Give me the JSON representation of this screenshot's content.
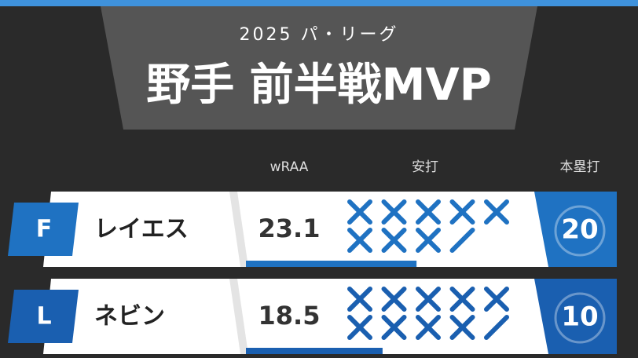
{
  "header": {
    "subtitle": "2025 パ・リーグ",
    "title": "野手 前半戦MVP"
  },
  "columns": [
    "wRAA",
    "安打",
    "本塁打"
  ],
  "rows": [
    {
      "team": "F",
      "name": "レイエス",
      "wraa": 23.1,
      "hit_bats": 17,
      "hr": 20
    },
    {
      "team": "L",
      "name": "ネビン",
      "wraa": 18.5,
      "hit_bats": 19,
      "hr": 10
    }
  ]
}
